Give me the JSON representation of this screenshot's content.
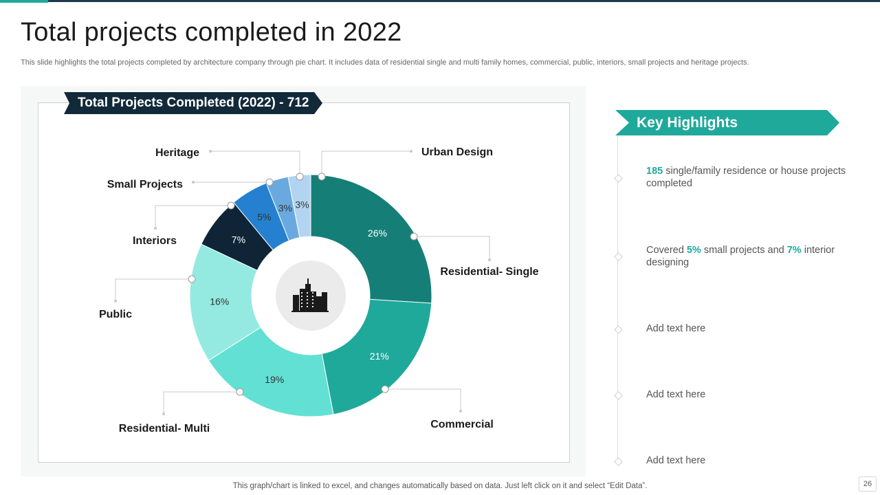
{
  "slide": {
    "title": "Total projects completed in 2022",
    "subtitle": "This slide highlights the total projects completed by architecture company through pie chart.  It includes data of residential single and multi family homes, commercial, public, interiors, small projects and heritage projects.",
    "footnote": "This graph/chart is linked to excel,  and changes automatically based on data. Just left click on it and select “Edit Data”.",
    "page_number": "26"
  },
  "chart_banner": "Total Projects Completed (2022) - 712",
  "chart_data": {
    "type": "pie",
    "donut": true,
    "center_icon": "city-buildings-icon",
    "title": "Total Projects Completed (2022) - 712",
    "slices": [
      {
        "category": "Residential- Single",
        "value": 26,
        "label": "26%",
        "color": "#157f77"
      },
      {
        "category": "Commercial",
        "value": 21,
        "label": "21%",
        "color": "#1fa99b"
      },
      {
        "category": "Residential- Multi",
        "value": 19,
        "label": "19%",
        "color": "#62e0d4"
      },
      {
        "category": "Public",
        "value": 16,
        "label": "16%",
        "color": "#94eae1"
      },
      {
        "category": "Interiors",
        "value": 7,
        "label": "7%",
        "color": "#0f2537"
      },
      {
        "category": "Small Projects",
        "value": 5,
        "label": "5%",
        "color": "#2581cf"
      },
      {
        "category": "Heritage",
        "value": 3,
        "label": "3%",
        "color": "#6aa9e0"
      },
      {
        "category": "Urban Design",
        "value": 3,
        "label": "3%",
        "color": "#b3d4f0"
      }
    ],
    "colors": {
      "inner_circle": "#ebebeb",
      "label_light": "#ffffff",
      "label_dark": "#333333",
      "leader": "#c8c8c8"
    }
  },
  "key_highlights": {
    "title": "Key Highlights",
    "items": [
      {
        "highlight": "185",
        "text": " single/family residence or house projects completed"
      },
      {
        "pre": "Covered ",
        "highlight1": "5%",
        "mid": " small projects and ",
        "highlight2": "7%",
        "post": " interior designing"
      },
      {
        "text": "Add text here"
      },
      {
        "text": "Add text here"
      },
      {
        "text": "Add text here"
      }
    ]
  }
}
